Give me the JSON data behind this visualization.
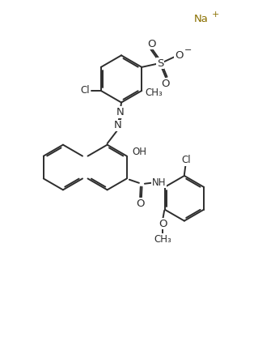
{
  "background": "#ffffff",
  "line_color": "#2d2d2d",
  "bond_lw": 1.4,
  "figsize": [
    3.19,
    4.32
  ],
  "dpi": 100,
  "xlim": [
    0,
    10
  ],
  "ylim": [
    0,
    13.5
  ]
}
